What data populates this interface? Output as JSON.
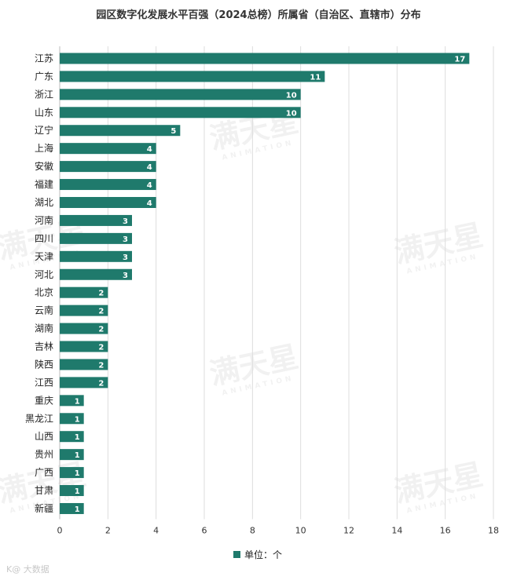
{
  "chart_data": {
    "type": "bar",
    "orientation": "horizontal",
    "title": "园区数字化发展水平百强（2024总榜）所属省（自治区、直辖市）分布",
    "categories": [
      "江苏",
      "广东",
      "浙江",
      "山东",
      "辽宁",
      "上海",
      "安徽",
      "福建",
      "湖北",
      "河南",
      "四川",
      "天津",
      "河北",
      "北京",
      "云南",
      "湖南",
      "吉林",
      "陕西",
      "江西",
      "重庆",
      "黑龙江",
      "山西",
      "贵州",
      "广西",
      "甘肃",
      "新疆"
    ],
    "values": [
      17,
      11,
      10,
      10,
      5,
      4,
      4,
      4,
      4,
      3,
      3,
      3,
      3,
      2,
      2,
      2,
      2,
      2,
      2,
      1,
      1,
      1,
      1,
      1,
      1,
      1
    ],
    "xlim": [
      0,
      18
    ],
    "xticks": [
      0,
      2,
      4,
      6,
      8,
      10,
      12,
      14,
      16,
      18
    ],
    "grid": "vertical",
    "legend": {
      "label": "单位：个",
      "position": "bottom"
    },
    "bar_color": "#1f7a6c"
  },
  "watermark": {
    "text": "满天星",
    "subtext": "ANIMATION"
  },
  "footer": {
    "text": "K@ 大数据"
  }
}
